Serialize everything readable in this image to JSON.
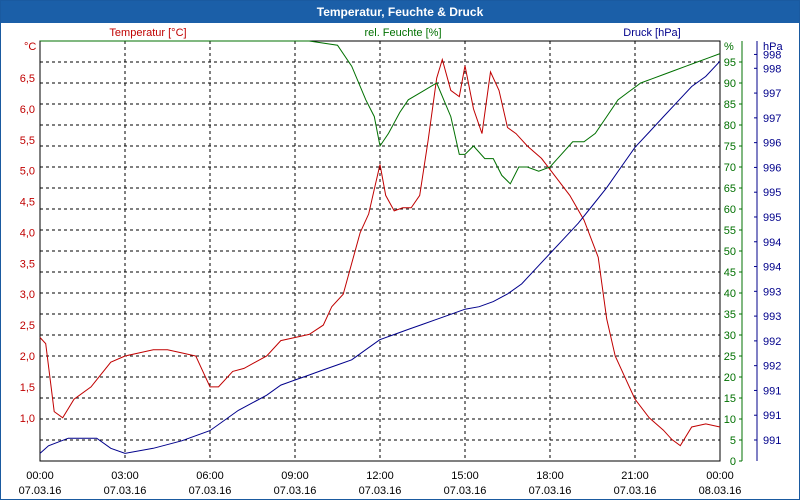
{
  "window": {
    "title": "Temperatur, Feuchte & Druck"
  },
  "chart_data": {
    "type": "line",
    "title": "Temperatur, Feuchte & Druck",
    "grid": true,
    "x_ticks": [
      {
        "time": "00:00",
        "date": "07.03.16"
      },
      {
        "time": "03:00",
        "date": "07.03.16"
      },
      {
        "time": "06:00",
        "date": "07.03.16"
      },
      {
        "time": "09:00",
        "date": "07.03.16"
      },
      {
        "time": "12:00",
        "date": "07.03.16"
      },
      {
        "time": "15:00",
        "date": "07.03.16"
      },
      {
        "time": "18:00",
        "date": "07.03.16"
      },
      {
        "time": "21:00",
        "date": "07.03.16"
      },
      {
        "time": "00:00",
        "date": "08.03.16"
      }
    ],
    "x_range_hours": [
      0,
      24
    ],
    "axes": {
      "temperature": {
        "label": "Temperatur [°C]",
        "unit": "°C",
        "color": "#c00000",
        "range": [
          0.3,
          7.1
        ],
        "ticks": [
          "1,0",
          "1,5",
          "2,0",
          "2,5",
          "3,0",
          "3,5",
          "4,0",
          "4,5",
          "5,0",
          "5,5",
          "6,0",
          "6,5"
        ],
        "tick_values": [
          1.0,
          1.5,
          2.0,
          2.5,
          3.0,
          3.5,
          4.0,
          4.5,
          5.0,
          5.5,
          6.0,
          6.5
        ]
      },
      "humidity": {
        "label": "rel. Feuchte [%]",
        "unit": "%",
        "color": "#007000",
        "range": [
          0,
          100
        ],
        "ticks": [
          "0",
          "5",
          "10",
          "15",
          "20",
          "25",
          "30",
          "35",
          "40",
          "45",
          "50",
          "55",
          "60",
          "65",
          "70",
          "75",
          "80",
          "85",
          "90",
          "95"
        ],
        "tick_values": [
          0,
          5,
          10,
          15,
          20,
          25,
          30,
          35,
          40,
          45,
          50,
          55,
          60,
          65,
          70,
          75,
          80,
          85,
          90,
          95
        ]
      },
      "pressure": {
        "label": "Druck [hPa]",
        "unit": "hPa",
        "color": "#00008b",
        "range": [
          990.5,
          998.8
        ],
        "ticks": [
          "991",
          "991",
          "991",
          "992",
          "992",
          "993",
          "993",
          "994",
          "994",
          "995",
          "995",
          "996",
          "996",
          "997",
          "997",
          "998",
          "998"
        ],
        "tick_positions": [
          0.05,
          0.109,
          0.168,
          0.227,
          0.286,
          0.345,
          0.404,
          0.463,
          0.522,
          0.581,
          0.64,
          0.699,
          0.758,
          0.817,
          0.876,
          0.935,
          0.968
        ]
      }
    },
    "series": [
      {
        "name": "Temperatur [°C]",
        "axis": "temperature",
        "color": "#c00000",
        "x": [
          0,
          0.2,
          0.5,
          0.8,
          1.2,
          1.8,
          2.5,
          3.0,
          3.5,
          4.0,
          4.5,
          5.0,
          5.5,
          6.0,
          6.3,
          6.8,
          7.2,
          7.6,
          8.0,
          8.5,
          9.0,
          9.5,
          10.0,
          10.3,
          10.7,
          11.0,
          11.3,
          11.6,
          11.8,
          12.0,
          12.2,
          12.5,
          12.8,
          13.1,
          13.4,
          13.7,
          14.0,
          14.2,
          14.5,
          14.8,
          15.0,
          15.3,
          15.6,
          15.9,
          16.2,
          16.5,
          16.8,
          17.2,
          17.7,
          18.2,
          18.7,
          19.2,
          19.7,
          20.0,
          20.3,
          20.7,
          21.0,
          21.5,
          22.0,
          22.3,
          22.6,
          23.0,
          23.5,
          24.0
        ],
        "y": [
          2.3,
          2.2,
          1.1,
          1.0,
          1.3,
          1.5,
          1.9,
          2.0,
          2.05,
          2.1,
          2.1,
          2.05,
          2.0,
          1.5,
          1.5,
          1.75,
          1.8,
          1.9,
          2.0,
          2.25,
          2.3,
          2.35,
          2.5,
          2.8,
          3.0,
          3.5,
          4.0,
          4.3,
          4.7,
          5.1,
          4.6,
          4.35,
          4.4,
          4.4,
          4.6,
          5.5,
          6.5,
          6.8,
          6.3,
          6.2,
          6.7,
          6.0,
          5.6,
          6.6,
          6.3,
          5.7,
          5.6,
          5.4,
          5.2,
          4.9,
          4.6,
          4.2,
          3.6,
          2.6,
          2.0,
          1.6,
          1.3,
          1.0,
          0.8,
          0.65,
          0.55,
          0.85,
          0.9,
          0.85
        ]
      },
      {
        "name": "rel. Feuchte [%]",
        "axis": "humidity",
        "color": "#007000",
        "x": [
          0,
          2,
          4,
          6,
          8,
          9.5,
          10.5,
          11.0,
          11.5,
          11.8,
          12.0,
          12.3,
          12.7,
          13.0,
          13.5,
          14.0,
          14.5,
          14.8,
          15.0,
          15.3,
          15.7,
          16.0,
          16.3,
          16.6,
          16.9,
          17.2,
          17.6,
          18.0,
          18.4,
          18.8,
          19.2,
          19.6,
          20.0,
          20.4,
          20.8,
          21.2,
          21.6,
          22.0,
          22.4,
          22.8,
          23.2,
          23.6,
          24.0
        ],
        "y": [
          100,
          100,
          100,
          100,
          100,
          100,
          99,
          94,
          86,
          82,
          75,
          78,
          83,
          86,
          88,
          90,
          82,
          73,
          73,
          75,
          72,
          72,
          68,
          66,
          70,
          70,
          69,
          70,
          73,
          76,
          76,
          78,
          82,
          86,
          88,
          90,
          91,
          92,
          93,
          94,
          95,
          96,
          97
        ]
      },
      {
        "name": "Druck [hPa]",
        "axis": "pressure",
        "color": "#00008b",
        "x": [
          0,
          0.3,
          1.0,
          2.0,
          2.5,
          3.0,
          4.0,
          5.0,
          6.0,
          7.0,
          8.0,
          8.5,
          9.0,
          9.5,
          10.0,
          10.5,
          11.0,
          11.5,
          12.0,
          12.5,
          13.0,
          13.5,
          14.0,
          14.5,
          15.0,
          15.5,
          16.0,
          16.5,
          17.0,
          17.5,
          18.0,
          18.5,
          19.0,
          19.5,
          20.0,
          20.5,
          21.0,
          21.5,
          22.0,
          22.5,
          23.0,
          23.5,
          24.0
        ],
        "y": [
          990.65,
          990.8,
          990.95,
          990.95,
          990.75,
          990.65,
          990.75,
          990.9,
          991.1,
          991.5,
          991.8,
          992.0,
          992.1,
          992.2,
          992.3,
          992.4,
          992.5,
          992.7,
          992.9,
          993.0,
          993.1,
          993.2,
          993.3,
          993.4,
          993.5,
          993.55,
          993.65,
          993.8,
          994.0,
          994.3,
          994.6,
          994.9,
          995.2,
          995.55,
          995.9,
          996.3,
          996.7,
          997.0,
          997.3,
          997.6,
          997.9,
          998.1,
          998.4
        ]
      }
    ]
  }
}
